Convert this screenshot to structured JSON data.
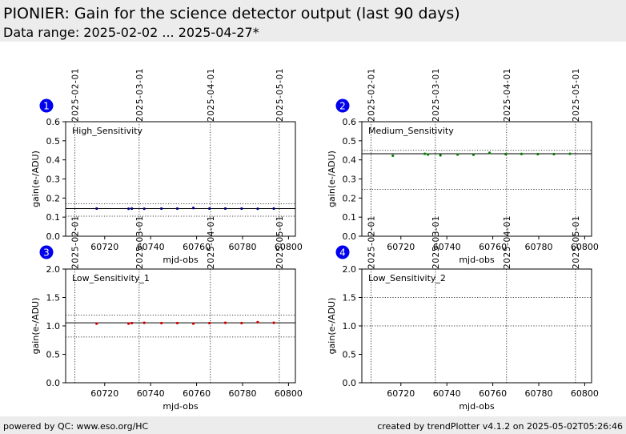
{
  "header": {
    "title": "PIONIER: Gain for the science detector output (last 90 days)",
    "subtitle": "Data range: 2025-02-02 ... 2025-04-27*"
  },
  "footer": {
    "left": "powered by QC: www.eso.org/HC",
    "right": "created by trendPlotter v4.1.2 on 2025-05-02T05:26:46"
  },
  "colors": {
    "badge": "#0000ee",
    "high": "#000080",
    "medium": "#008000",
    "low1": "#cc0000",
    "low2": "#cc0000"
  },
  "chart_data": [
    {
      "type": "scatter",
      "panel_number": "1",
      "label": "High_Sensitivity",
      "xlabel": "mjd-obs",
      "ylabel": "gain(e-/ADU)",
      "xlim": [
        60703,
        60803
      ],
      "ylim": [
        0,
        0.6
      ],
      "xticks": [
        60720,
        60740,
        60760,
        60780,
        60800
      ],
      "yticks": [
        0.0,
        0.1,
        0.2,
        0.3,
        0.4,
        0.5,
        0.6
      ],
      "ytick_labels": [
        "0.0",
        "0.1",
        "0.2",
        "0.3",
        "0.4",
        "0.5",
        "0.6"
      ],
      "date_markers": [
        {
          "label": "2025-02-01",
          "mjd": 60707
        },
        {
          "label": "2025-03-01",
          "mjd": 60735
        },
        {
          "label": "2025-04-01",
          "mjd": 60766
        },
        {
          "label": "2025-05-01",
          "mjd": 60796
        }
      ],
      "reference_line": 0.145,
      "threshold_lines": [
        0.17,
        0.105
      ],
      "color": "#000080",
      "x": [
        60716.5,
        60730.4,
        60731.8,
        60737.2,
        60744.7,
        60751.6,
        60758.6,
        60765.6,
        60772.5,
        60779.6,
        60786.6,
        60793.6
      ],
      "y": [
        0.145,
        0.144,
        0.145,
        0.144,
        0.145,
        0.145,
        0.148,
        0.145,
        0.145,
        0.145,
        0.144,
        0.145
      ]
    },
    {
      "type": "scatter",
      "panel_number": "2",
      "label": "Medium_Sensitivity",
      "xlabel": "mjd-obs",
      "ylabel": "gain(e-/ADU)",
      "xlim": [
        60703,
        60803
      ],
      "ylim": [
        0,
        0.6
      ],
      "xticks": [
        60720,
        60740,
        60760,
        60780,
        60800
      ],
      "yticks": [
        0.0,
        0.1,
        0.2,
        0.3,
        0.4,
        0.5,
        0.6
      ],
      "ytick_labels": [
        "0.0",
        "0.1",
        "0.2",
        "0.3",
        "0.4",
        "0.5",
        "0.6"
      ],
      "date_markers": [
        {
          "label": "2025-02-01",
          "mjd": 60707
        },
        {
          "label": "2025-03-01",
          "mjd": 60735
        },
        {
          "label": "2025-04-01",
          "mjd": 60766
        },
        {
          "label": "2025-05-01",
          "mjd": 60796
        }
      ],
      "reference_line": 0.432,
      "threshold_lines": [
        0.45,
        0.245
      ],
      "color": "#008000",
      "x": [
        60716.5,
        60730.4,
        60731.8,
        60737.2,
        60744.7,
        60751.6,
        60758.6,
        60765.6,
        60772.5,
        60779.6,
        60786.6,
        60793.6
      ],
      "y": [
        0.422,
        0.432,
        0.428,
        0.424,
        0.428,
        0.427,
        0.437,
        0.43,
        0.431,
        0.43,
        0.43,
        0.432
      ]
    },
    {
      "type": "scatter",
      "panel_number": "3",
      "label": "Low_Sensitivity_1",
      "xlabel": "mjd-obs",
      "ylabel": "gain(e-/ADU)",
      "xlim": [
        60703,
        60803
      ],
      "ylim": [
        0,
        2.0
      ],
      "xticks": [
        60720,
        60740,
        60760,
        60780,
        60800
      ],
      "yticks": [
        0.0,
        0.5,
        1.0,
        1.5,
        2.0
      ],
      "ytick_labels": [
        "0.0",
        "0.5",
        "1.0",
        "1.5",
        "2.0"
      ],
      "date_markers": [
        {
          "label": "2025-02-01",
          "mjd": 60707
        },
        {
          "label": "2025-03-01",
          "mjd": 60735
        },
        {
          "label": "2025-04-01",
          "mjd": 60766
        },
        {
          "label": "2025-05-01",
          "mjd": 60796
        }
      ],
      "reference_line": 1.055,
      "threshold_lines": [
        1.19,
        0.805
      ],
      "color": "#cc0000",
      "x": [
        60716.5,
        60730.4,
        60731.8,
        60737.2,
        60744.7,
        60751.6,
        60758.6,
        60765.6,
        60772.5,
        60779.6,
        60786.6,
        60793.6
      ],
      "y": [
        1.04,
        1.04,
        1.05,
        1.055,
        1.05,
        1.05,
        1.04,
        1.05,
        1.055,
        1.05,
        1.065,
        1.055
      ]
    },
    {
      "type": "scatter",
      "panel_number": "4",
      "label": "Low_Sensitivity_2",
      "xlabel": "mjd-obs",
      "ylabel": "gain(e-/ADU)",
      "xlim": [
        60703,
        60803
      ],
      "ylim": [
        0,
        2.0
      ],
      "xticks": [
        60720,
        60740,
        60760,
        60780,
        60800
      ],
      "yticks": [
        0.0,
        0.5,
        1.0,
        1.5,
        2.0
      ],
      "ytick_labels": [
        "0.0",
        "0.5",
        "1.0",
        "1.5",
        "2.0"
      ],
      "date_markers": [
        {
          "label": "2025-02-01",
          "mjd": 60707
        },
        {
          "label": "2025-03-01",
          "mjd": 60735
        },
        {
          "label": "2025-04-01",
          "mjd": 60766
        },
        {
          "label": "2025-05-01",
          "mjd": 60796
        }
      ],
      "reference_line": null,
      "threshold_lines": [
        1.5,
        1.0
      ],
      "color": "#cc0000",
      "x": [],
      "y": []
    }
  ]
}
